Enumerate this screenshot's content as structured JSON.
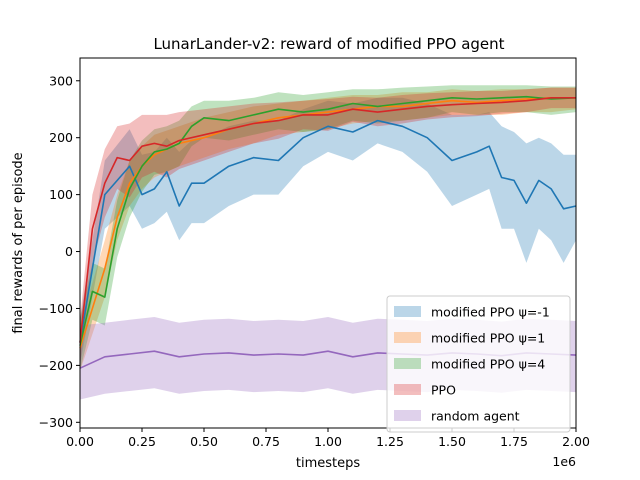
{
  "chart_data": {
    "type": "line",
    "title": "LunarLander-v2: reward of modified PPO agent",
    "xlabel": "timesteps",
    "ylabel": "final rewards of per episode",
    "x_scale_label": "1e6",
    "xlim": [
      0,
      2000000
    ],
    "ylim": [
      -310,
      340
    ],
    "x_ticks": [
      0,
      250000,
      500000,
      750000,
      1000000,
      1250000,
      1500000,
      1750000,
      2000000
    ],
    "x_tick_labels": [
      "0.00",
      "0.25",
      "0.50",
      "0.75",
      "1.00",
      "1.25",
      "1.50",
      "1.75",
      "2.00"
    ],
    "y_ticks": [
      -300,
      -200,
      -100,
      0,
      100,
      200,
      300
    ],
    "y_tick_labels": [
      "−300",
      "−200",
      "−100",
      "0",
      "100",
      "200",
      "300"
    ],
    "grid": false,
    "legend_position": "lower-right",
    "series": [
      {
        "name": "modified PPO ψ=-1",
        "legend_label": "modified PPO ψ=-1",
        "color": "#1f77b4",
        "x": [
          0,
          100000,
          200000,
          250000,
          300000,
          350000,
          400000,
          450000,
          500000,
          600000,
          700000,
          800000,
          900000,
          1000000,
          1100000,
          1200000,
          1300000,
          1400000,
          1500000,
          1600000,
          1650000,
          1700000,
          1750000,
          1800000,
          1850000,
          1900000,
          1950000,
          2000000
        ],
        "values": [
          -160,
          100,
          150,
          100,
          110,
          140,
          80,
          120,
          120,
          150,
          165,
          160,
          200,
          220,
          210,
          230,
          220,
          200,
          160,
          175,
          185,
          130,
          125,
          85,
          125,
          110,
          75,
          80
        ],
        "band_upper": [
          -120,
          160,
          215,
          170,
          175,
          200,
          175,
          195,
          200,
          220,
          230,
          230,
          250,
          265,
          260,
          270,
          270,
          260,
          240,
          240,
          245,
          220,
          210,
          190,
          200,
          190,
          170,
          170
        ],
        "band_lower": [
          -200,
          40,
          80,
          40,
          50,
          70,
          20,
          50,
          50,
          80,
          100,
          100,
          150,
          175,
          160,
          190,
          175,
          140,
          80,
          100,
          110,
          40,
          40,
          -20,
          40,
          20,
          -20,
          20
        ]
      },
      {
        "name": "modified PPO ψ=1",
        "legend_label": "modified PPO ψ=1",
        "color": "#ff7f0e",
        "x": [
          0,
          100000,
          150000,
          200000,
          250000,
          300000,
          400000,
          500000,
          600000,
          700000,
          800000,
          900000,
          1000000,
          1100000,
          1200000,
          1300000,
          1400000,
          1500000,
          1600000,
          1700000,
          1800000,
          1900000,
          2000000
        ],
        "values": [
          -170,
          -30,
          60,
          120,
          150,
          170,
          190,
          200,
          215,
          225,
          235,
          240,
          245,
          250,
          255,
          255,
          260,
          265,
          262,
          265,
          268,
          270,
          270
        ],
        "band_upper": [
          -130,
          20,
          100,
          160,
          185,
          205,
          220,
          235,
          245,
          255,
          260,
          265,
          270,
          275,
          275,
          280,
          280,
          285,
          282,
          285,
          285,
          288,
          288
        ],
        "band_lower": [
          -210,
          -80,
          20,
          80,
          110,
          130,
          150,
          165,
          180,
          190,
          205,
          210,
          215,
          225,
          230,
          230,
          235,
          240,
          240,
          240,
          245,
          245,
          250
        ]
      },
      {
        "name": "modified PPO ψ=4",
        "legend_label": "modified PPO ψ=4",
        "color": "#2ca02c",
        "x": [
          0,
          50000,
          100000,
          150000,
          200000,
          250000,
          300000,
          350000,
          400000,
          450000,
          500000,
          600000,
          700000,
          800000,
          900000,
          1000000,
          1100000,
          1200000,
          1300000,
          1400000,
          1500000,
          1600000,
          1700000,
          1800000,
          1900000,
          2000000
        ],
        "values": [
          -165,
          -70,
          -80,
          40,
          110,
          150,
          175,
          180,
          190,
          220,
          235,
          230,
          240,
          250,
          245,
          250,
          260,
          255,
          260,
          265,
          270,
          268,
          270,
          272,
          268,
          270
        ],
        "band_upper": [
          -120,
          -20,
          -30,
          90,
          160,
          195,
          215,
          220,
          230,
          255,
          265,
          265,
          270,
          280,
          275,
          280,
          285,
          285,
          288,
          290,
          292,
          292,
          292,
          292,
          290,
          290
        ],
        "band_lower": [
          -210,
          -120,
          -130,
          -10,
          60,
          105,
          135,
          140,
          150,
          185,
          200,
          195,
          205,
          215,
          210,
          215,
          230,
          225,
          230,
          235,
          245,
          240,
          245,
          245,
          240,
          245
        ]
      },
      {
        "name": "PPO",
        "legend_label": "PPO",
        "color": "#d62728",
        "x": [
          0,
          50000,
          100000,
          150000,
          200000,
          250000,
          300000,
          350000,
          400000,
          500000,
          600000,
          700000,
          800000,
          900000,
          1000000,
          1100000,
          1200000,
          1300000,
          1400000,
          1500000,
          1600000,
          1700000,
          1800000,
          1900000,
          2000000
        ],
        "values": [
          -160,
          40,
          120,
          165,
          160,
          185,
          190,
          185,
          195,
          205,
          215,
          225,
          230,
          240,
          240,
          250,
          245,
          250,
          255,
          258,
          260,
          262,
          265,
          270,
          270
        ],
        "band_upper": [
          -120,
          100,
          180,
          220,
          225,
          240,
          240,
          240,
          245,
          250,
          255,
          260,
          262,
          265,
          268,
          272,
          270,
          275,
          278,
          280,
          282,
          282,
          285,
          288,
          288
        ],
        "band_lower": [
          -200,
          -20,
          60,
          110,
          95,
          130,
          140,
          130,
          145,
          160,
          175,
          190,
          198,
          215,
          212,
          228,
          220,
          225,
          232,
          236,
          238,
          242,
          245,
          252,
          252
        ]
      },
      {
        "name": "random agent",
        "legend_label": "random agent",
        "color": "#9467bd",
        "x": [
          0,
          100000,
          200000,
          300000,
          400000,
          500000,
          600000,
          700000,
          800000,
          900000,
          1000000,
          1100000,
          1200000,
          1300000,
          1400000,
          1500000,
          1600000,
          1700000,
          1800000,
          1900000,
          2000000
        ],
        "values": [
          -205,
          -185,
          -180,
          -175,
          -185,
          -180,
          -178,
          -182,
          -180,
          -182,
          -175,
          -185,
          -178,
          -180,
          -182,
          -178,
          -180,
          -183,
          -178,
          -180,
          -182
        ],
        "band_upper": [
          -130,
          -125,
          -120,
          -115,
          -125,
          -120,
          -118,
          -122,
          -120,
          -122,
          -115,
          -125,
          -118,
          -120,
          -122,
          -118,
          -120,
          -123,
          -118,
          -120,
          -122
        ],
        "band_lower": [
          -260,
          -250,
          -245,
          -240,
          -250,
          -245,
          -243,
          -247,
          -245,
          -247,
          -240,
          -250,
          -243,
          -245,
          -247,
          -243,
          -245,
          -248,
          -243,
          -245,
          -247
        ]
      }
    ]
  }
}
